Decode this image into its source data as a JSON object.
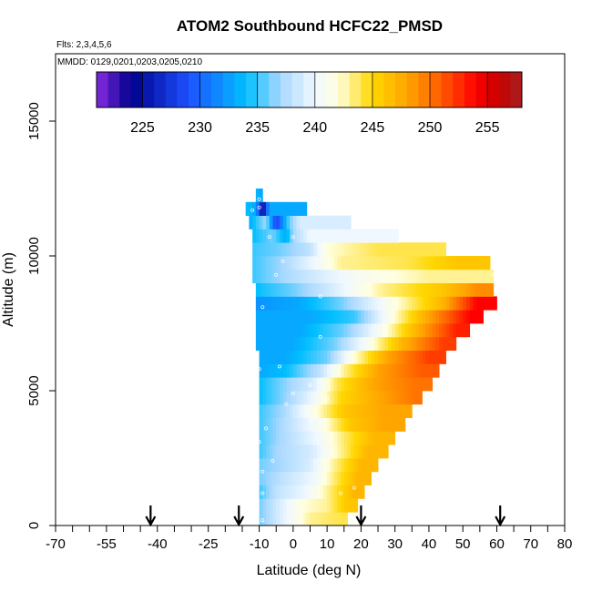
{
  "chart_data": {
    "type": "heatmap",
    "title": "ATOM2 Southbound HCFC22_PMSD",
    "flights_note": "Flts: 2,3,4,5,6",
    "dates_note": "MMDD: 0129,0201,0203,0205,0210",
    "xlabel": "Latitude (deg N)",
    "ylabel": "Altitude (m)",
    "xlim": [
      -70,
      80
    ],
    "ylim": [
      0,
      17500
    ],
    "x_ticks": [
      -70,
      -55,
      -40,
      -25,
      -10,
      0,
      10,
      20,
      30,
      40,
      50,
      60,
      70,
      80
    ],
    "x_tick_labels": [
      "-70",
      "-55",
      "-40",
      "-25",
      "-10",
      "0",
      "10",
      "20",
      "30",
      "40",
      "50",
      "60",
      "70",
      "80"
    ],
    "y_ticks": [
      0,
      5000,
      10000,
      15000
    ],
    "y_tick_labels": [
      "0",
      "5000",
      "10000",
      "15000"
    ],
    "colorbar": {
      "min": 221,
      "max": 258,
      "ticks": [
        225,
        230,
        235,
        240,
        245,
        250,
        255
      ],
      "tick_labels": [
        "225",
        "230",
        "235",
        "240",
        "245",
        "250",
        "255"
      ],
      "stops": [
        {
          "v": 221,
          "c": "#8a2be2"
        },
        {
          "v": 224,
          "c": "#00008b"
        },
        {
          "v": 229,
          "c": "#1e50ff"
        },
        {
          "v": 234,
          "c": "#00bfff"
        },
        {
          "v": 237,
          "c": "#a8d8ff"
        },
        {
          "v": 240,
          "c": "#f0f8ff"
        },
        {
          "v": 242,
          "c": "#ffffe0"
        },
        {
          "v": 245,
          "c": "#ffd700"
        },
        {
          "v": 248,
          "c": "#ffa500"
        },
        {
          "v": 251,
          "c": "#ff5a00"
        },
        {
          "v": 254,
          "c": "#ff0000"
        },
        {
          "v": 256,
          "c": "#c80000"
        },
        {
          "v": 258,
          "c": "#a52020"
        }
      ]
    },
    "arrow_latitudes": [
      -42,
      -16,
      20,
      61
    ],
    "bins": [
      {
        "y0": 0,
        "y1": 500,
        "x0": -10,
        "segs": [
          [
            -10,
            236
          ],
          [
            -6,
            238
          ],
          [
            -2,
            240
          ],
          [
            5,
            243
          ],
          [
            14,
            244
          ]
        ],
        "x_end": 16
      },
      {
        "y0": 500,
        "y1": 1000,
        "x0": -10,
        "segs": [
          [
            -10,
            236
          ],
          [
            -4,
            239
          ],
          [
            3,
            242
          ],
          [
            10,
            243
          ],
          [
            16,
            246
          ]
        ],
        "x_end": 19
      },
      {
        "y0": 1000,
        "y1": 1500,
        "x0": -10,
        "segs": [
          [
            -10,
            235
          ],
          [
            -5,
            238
          ],
          [
            4,
            240
          ],
          [
            12,
            244
          ],
          [
            18,
            247
          ]
        ],
        "x_end": 21
      },
      {
        "y0": 1500,
        "y1": 2000,
        "x0": -10,
        "segs": [
          [
            -10,
            236
          ],
          [
            -3,
            238
          ],
          [
            6,
            240
          ],
          [
            13,
            244
          ],
          [
            19,
            247
          ]
        ],
        "x_end": 23
      },
      {
        "y0": 2000,
        "y1": 2500,
        "x0": -10,
        "segs": [
          [
            -10,
            236
          ],
          [
            -4,
            237
          ],
          [
            5,
            239
          ],
          [
            12,
            243
          ],
          [
            20,
            247
          ]
        ],
        "x_end": 25
      },
      {
        "y0": 2500,
        "y1": 3000,
        "x0": -10,
        "segs": [
          [
            -10,
            235
          ],
          [
            -5,
            237
          ],
          [
            6,
            239
          ],
          [
            14,
            243
          ],
          [
            22,
            247
          ]
        ],
        "x_end": 28
      },
      {
        "y0": 3000,
        "y1": 3500,
        "x0": -10,
        "segs": [
          [
            -10,
            235
          ],
          [
            -4,
            237
          ],
          [
            7,
            240
          ],
          [
            16,
            244
          ],
          [
            24,
            247
          ]
        ],
        "x_end": 30
      },
      {
        "y0": 3500,
        "y1": 4000,
        "x0": -10,
        "segs": [
          [
            -10,
            235
          ],
          [
            -4,
            237
          ],
          [
            8,
            241
          ],
          [
            17,
            246
          ],
          [
            27,
            248
          ]
        ],
        "x_end": 33
      },
      {
        "y0": 4000,
        "y1": 4500,
        "x0": -10,
        "segs": [
          [
            -10,
            235
          ],
          [
            -3,
            237
          ],
          [
            7,
            242
          ],
          [
            15,
            246
          ],
          [
            27,
            248
          ]
        ],
        "x_end": 35
      },
      {
        "y0": 4500,
        "y1": 5000,
        "x0": -10,
        "segs": [
          [
            -10,
            234
          ],
          [
            -4,
            236
          ],
          [
            6,
            240
          ],
          [
            14,
            245
          ],
          [
            26,
            248
          ],
          [
            36,
            250
          ]
        ],
        "x_end": 38
      },
      {
        "y0": 5000,
        "y1": 5500,
        "x0": -10,
        "segs": [
          [
            -10,
            234
          ],
          [
            -4,
            236
          ],
          [
            6,
            239
          ],
          [
            13,
            244
          ],
          [
            24,
            248
          ],
          [
            36,
            250
          ]
        ],
        "x_end": 41
      },
      {
        "y0": 5500,
        "y1": 6000,
        "x0": -10,
        "segs": [
          [
            -10,
            233
          ],
          [
            -2,
            234
          ],
          [
            8,
            238
          ],
          [
            15,
            243
          ],
          [
            25,
            248
          ],
          [
            38,
            251
          ]
        ],
        "x_end": 43
      },
      {
        "y0": 6000,
        "y1": 6500,
        "x0": -10,
        "segs": [
          [
            -10,
            233
          ],
          [
            -2,
            233
          ],
          [
            10,
            236
          ],
          [
            18,
            242
          ],
          [
            28,
            248
          ],
          [
            40,
            252
          ]
        ],
        "x_end": 45
      },
      {
        "y0": 6500,
        "y1": 7000,
        "x0": -11,
        "segs": [
          [
            -11,
            233
          ],
          [
            0,
            233
          ],
          [
            12,
            236
          ],
          [
            22,
            241
          ],
          [
            32,
            247
          ],
          [
            44,
            252
          ]
        ],
        "x_end": 48
      },
      {
        "y0": 7000,
        "y1": 7500,
        "x0": -11,
        "segs": [
          [
            -11,
            233
          ],
          [
            2,
            233
          ],
          [
            15,
            236
          ],
          [
            26,
            241
          ],
          [
            36,
            247
          ],
          [
            48,
            253
          ]
        ],
        "x_end": 52
      },
      {
        "y0": 7500,
        "y1": 8000,
        "x0": -11,
        "segs": [
          [
            -11,
            233
          ],
          [
            5,
            233
          ],
          [
            18,
            235
          ],
          [
            28,
            241
          ],
          [
            40,
            248
          ],
          [
            52,
            254
          ]
        ],
        "x_end": 56
      },
      {
        "y0": 8000,
        "y1": 8500,
        "x0": -11,
        "segs": [
          [
            -11,
            232
          ],
          [
            2,
            233
          ],
          [
            14,
            236
          ],
          [
            28,
            241
          ],
          [
            44,
            247
          ],
          [
            54,
            254
          ]
        ],
        "x_end": 60
      },
      {
        "y0": 8500,
        "y1": 9000,
        "x0": -11,
        "segs": [
          [
            -11,
            234
          ],
          [
            0,
            236
          ],
          [
            12,
            239
          ],
          [
            26,
            243
          ],
          [
            44,
            246
          ],
          [
            54,
            249
          ]
        ],
        "x_end": 59
      },
      {
        "y0": 9000,
        "y1": 9500,
        "x0": -12,
        "segs": [
          [
            -12,
            235
          ],
          [
            -3,
            237
          ],
          [
            8,
            239
          ],
          [
            20,
            241
          ],
          [
            40,
            243
          ],
          [
            52,
            243
          ]
        ],
        "x_end": 59
      },
      {
        "y0": 9500,
        "y1": 10000,
        "x0": -12,
        "segs": [
          [
            -12,
            235
          ],
          [
            -3,
            237
          ],
          [
            6,
            240
          ],
          [
            14,
            243
          ],
          [
            34,
            244
          ],
          [
            48,
            246
          ]
        ],
        "x_end": 58
      },
      {
        "y0": 10000,
        "y1": 10500,
        "x0": -12,
        "segs": [
          [
            -12,
            235
          ],
          [
            -4,
            236
          ],
          [
            5,
            238
          ],
          [
            10,
            242
          ],
          [
            25,
            244
          ]
        ],
        "x_end": 45
      },
      {
        "y0": 10500,
        "y1": 11000,
        "x0": -12,
        "segs": [
          [
            -12,
            234
          ],
          [
            -6,
            236
          ],
          [
            -2,
            233
          ],
          [
            0,
            237
          ],
          [
            5,
            240
          ]
        ],
        "x_end": 31
      },
      {
        "y0": 11000,
        "y1": 11500,
        "x0": -13,
        "segs": [
          [
            -13,
            233
          ],
          [
            -8,
            237
          ],
          [
            -5,
            228
          ],
          [
            -1,
            236
          ],
          [
            2,
            239
          ]
        ],
        "x_end": 17
      },
      {
        "y0": 11500,
        "y1": 12000,
        "x0": -14,
        "segs": [
          [
            -14,
            234
          ],
          [
            -11,
            233
          ],
          [
            -9,
            224
          ],
          [
            -7,
            233
          ]
        ],
        "x_end": 4
      },
      {
        "y0": 12000,
        "y1": 12500,
        "x0": -11,
        "segs": [
          [
            -11,
            234
          ],
          [
            -10,
            233
          ]
        ],
        "x_end": -9
      }
    ],
    "sample_points": [
      [
        -9,
        200
      ],
      [
        -9,
        1200
      ],
      [
        -9,
        2000
      ],
      [
        -6,
        2400
      ],
      [
        -10,
        3100
      ],
      [
        -8,
        3600
      ],
      [
        5,
        3900
      ],
      [
        -2,
        4500
      ],
      [
        0,
        4900
      ],
      [
        10,
        4700
      ],
      [
        -4,
        5900
      ],
      [
        -10,
        5800
      ],
      [
        5,
        5200
      ],
      [
        8,
        7000
      ],
      [
        -9,
        8100
      ],
      [
        8,
        8500
      ],
      [
        -5,
        9300
      ],
      [
        -3,
        9800
      ],
      [
        -7,
        10700
      ],
      [
        0,
        10700
      ],
      [
        -12,
        11700
      ],
      [
        -10,
        11800
      ],
      [
        60,
        8800
      ],
      [
        59,
        9300
      ],
      [
        -10,
        12100
      ],
      [
        14,
        1200
      ],
      [
        18,
        1400
      ]
    ]
  }
}
